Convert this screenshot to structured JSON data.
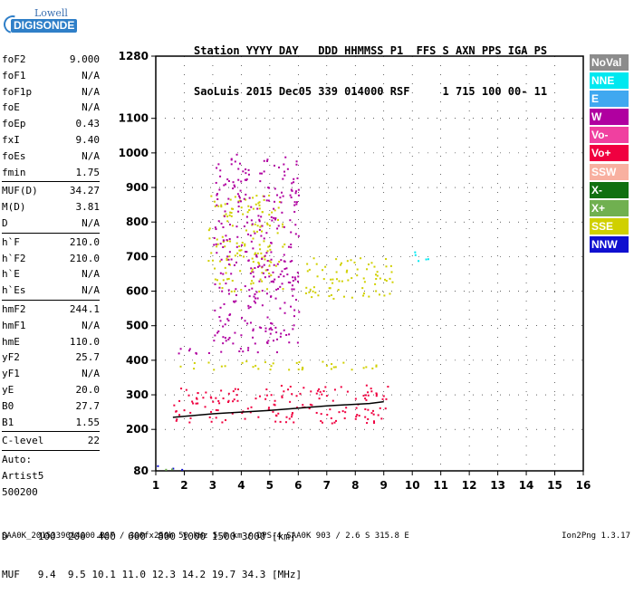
{
  "logo": {
    "line1": "Lowell",
    "line2": "DIGISONDE"
  },
  "header": {
    "line1": "Station YYYY DAY   DDD HHMMSS P1  FFS S AXN PPS IGA PS",
    "line2": "SaoLuis 2015 Dec05 339 014000 RSF     1 715 100 00- 11"
  },
  "params": {
    "g1": [
      {
        "label": "foF2",
        "value": "9.000"
      },
      {
        "label": "foF1",
        "value": "N/A"
      },
      {
        "label": "foF1p",
        "value": "N/A"
      },
      {
        "label": "foE",
        "value": "N/A"
      },
      {
        "label": "foEp",
        "value": "0.43"
      },
      {
        "label": "fxI",
        "value": "9.40"
      },
      {
        "label": "foEs",
        "value": "N/A"
      },
      {
        "label": "fmin",
        "value": "1.75"
      }
    ],
    "g2": [
      {
        "label": "MUF(D)",
        "value": "34.27"
      },
      {
        "label": "M(D)",
        "value": "3.81"
      },
      {
        "label": "D",
        "value": "N/A"
      }
    ],
    "g3": [
      {
        "label": "h`F",
        "value": "210.0"
      },
      {
        "label": "h`F2",
        "value": "210.0"
      },
      {
        "label": "h`E",
        "value": "N/A"
      },
      {
        "label": "h`Es",
        "value": "N/A"
      }
    ],
    "g4": [
      {
        "label": "hmF2",
        "value": "244.1"
      },
      {
        "label": "hmF1",
        "value": "N/A"
      },
      {
        "label": "hmE",
        "value": "110.0"
      },
      {
        "label": "yF2",
        "value": "25.7"
      },
      {
        "label": "yF1",
        "value": "N/A"
      },
      {
        "label": "yE",
        "value": "20.0"
      },
      {
        "label": "B0",
        "value": "27.7"
      },
      {
        "label": "B1",
        "value": "1.55"
      }
    ],
    "clevel": {
      "label": "C-level",
      "value": "22"
    },
    "auto": [
      "Auto:",
      "Artist5",
      "500200"
    ]
  },
  "legend": [
    {
      "label": "NoVal",
      "color": "#8c8c8c"
    },
    {
      "label": "NNE",
      "color": "#00e8f0"
    },
    {
      "label": "E",
      "color": "#40a8f0"
    },
    {
      "label": "W",
      "color": "#b000a0"
    },
    {
      "label": "Vo-",
      "color": "#f040a0"
    },
    {
      "label": "Vo+",
      "color": "#f00040"
    },
    {
      "label": "SSW",
      "color": "#f8b0a0"
    },
    {
      "label": "X-",
      "color": "#107010"
    },
    {
      "label": "X+",
      "color": "#70b050"
    },
    {
      "label": "SSE",
      "color": "#d0d000"
    },
    {
      "label": "NNW",
      "color": "#1010d0"
    }
  ],
  "footer": {
    "line1": "D     100  200  400  600  800 1000 1500 3000 [km]",
    "line2": "MUF   9.4  9.5 10.1 11.0 12.3 14.2 19.7 34.3 [MHz]",
    "line3": "SAA0K_2015339014000.RSF / 300fx256h 50 kHz 5.0 km / DPS-4 SAA0K 903 / 2.6 S 315.8 E",
    "version": "Ion2Png 1.3.17"
  },
  "chart_data": {
    "type": "scatter",
    "title": "",
    "xlabel": "",
    "ylabel": "",
    "xlim": [
      1,
      16
    ],
    "ylim": [
      80,
      1280
    ],
    "x_ticks": [
      1,
      2,
      3,
      4,
      5,
      6,
      7,
      8,
      9,
      10,
      11,
      12,
      13,
      14,
      15,
      16
    ],
    "y_ticks": [
      80,
      200,
      300,
      400,
      500,
      600,
      700,
      800,
      900,
      1000,
      1100,
      1280
    ],
    "grid": true,
    "curve": {
      "name": "profile",
      "x": [
        1.6,
        3,
        5,
        7,
        8.5,
        9
      ],
      "y": [
        235,
        245,
        255,
        268,
        275,
        280
      ]
    },
    "echo_regions": [
      {
        "direction": "SSE",
        "color": "#d0d000",
        "x": [
          2.8,
          5.5
        ],
        "y": [
          600,
          880
        ]
      },
      {
        "direction": "SSE",
        "color": "#d0d000",
        "x": [
          6.2,
          9.3
        ],
        "y": [
          580,
          700
        ]
      },
      {
        "direction": "SSE",
        "color": "#d0d000",
        "x": [
          1.8,
          9.0
        ],
        "y": [
          375,
          400
        ]
      },
      {
        "direction": "Vo+",
        "color": "#f00040",
        "x": [
          1.6,
          9.2
        ],
        "y": [
          220,
          330
        ]
      },
      {
        "direction": "W",
        "color": "#b000a0",
        "x": [
          1.7,
          5.5
        ],
        "y": [
          420,
          440
        ]
      },
      {
        "direction": "W",
        "color": "#b000a0",
        "x": [
          3.0,
          6.0
        ],
        "y": [
          450,
          1000
        ]
      },
      {
        "direction": "NNE",
        "color": "#00e8f0",
        "x": [
          10.0,
          10.6
        ],
        "y": [
          680,
          720
        ]
      },
      {
        "direction": "NNW",
        "color": "#1010d0",
        "x": [
          1.0,
          2.0
        ],
        "y": [
          85,
          100
        ]
      },
      {
        "direction": "X+",
        "color": "#70b050",
        "x": [
          1.0,
          1.6
        ],
        "y": [
          80,
          95
        ]
      }
    ]
  }
}
